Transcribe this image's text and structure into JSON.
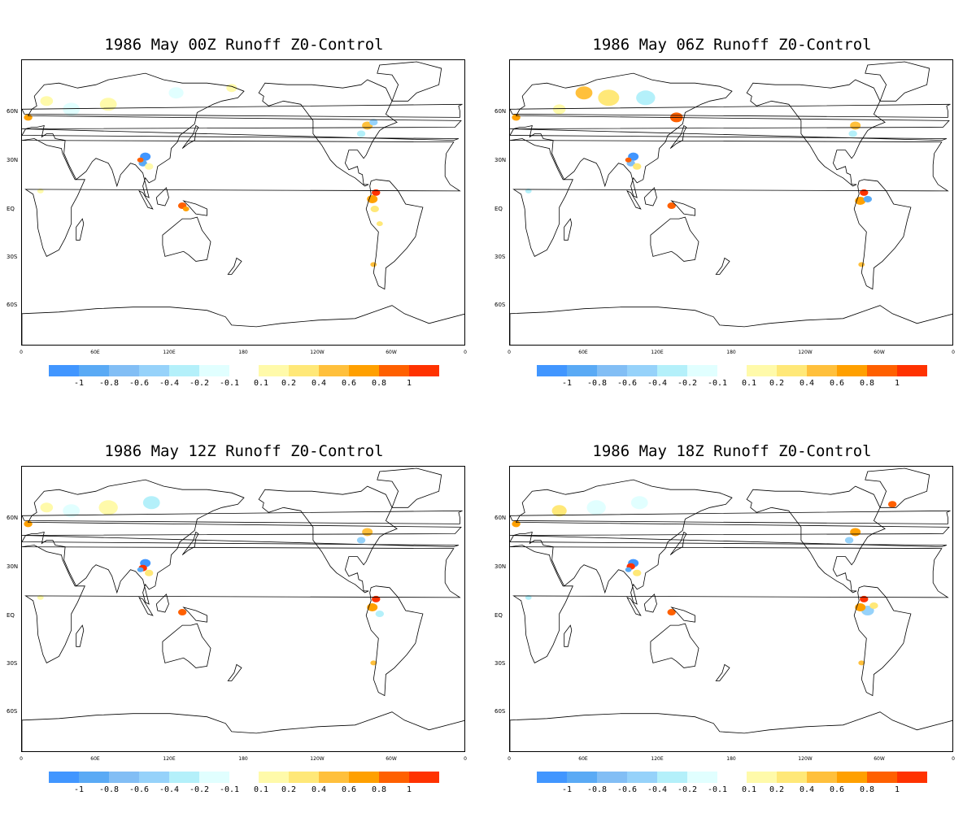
{
  "panels": [
    {
      "title": "1986 May 00Z Runoff Z0-Control"
    },
    {
      "title": "1986  May 06Z Runoff Z0-Control"
    },
    {
      "title": "1986  May 12Z Runoff Z0-Control"
    },
    {
      "title": "1986  May 18Z Runoff Z0-Control"
    }
  ],
  "lat_labels": [
    "60N",
    "30N",
    "EQ",
    "30S",
    "60S"
  ],
  "lon_labels": [
    "0",
    "60E",
    "120E",
    "180",
    "120W",
    "60W",
    "0"
  ],
  "colorbar": {
    "negative_colors": [
      "#4196ff",
      "#5aaaf5",
      "#82bef5",
      "#96d2fa",
      "#b4f0fa",
      "#e1ffff"
    ],
    "positive_colors": [
      "#fffaaa",
      "#ffe878",
      "#ffc03c",
      "#ffa000",
      "#ff6000",
      "#ff3200"
    ],
    "labels": [
      "-1",
      "-0.8",
      "-0.6",
      "-0.4",
      "-0.2",
      "-0.1",
      "0.1",
      "0.2",
      "0.4",
      "0.6",
      "0.8",
      "1"
    ]
  }
}
